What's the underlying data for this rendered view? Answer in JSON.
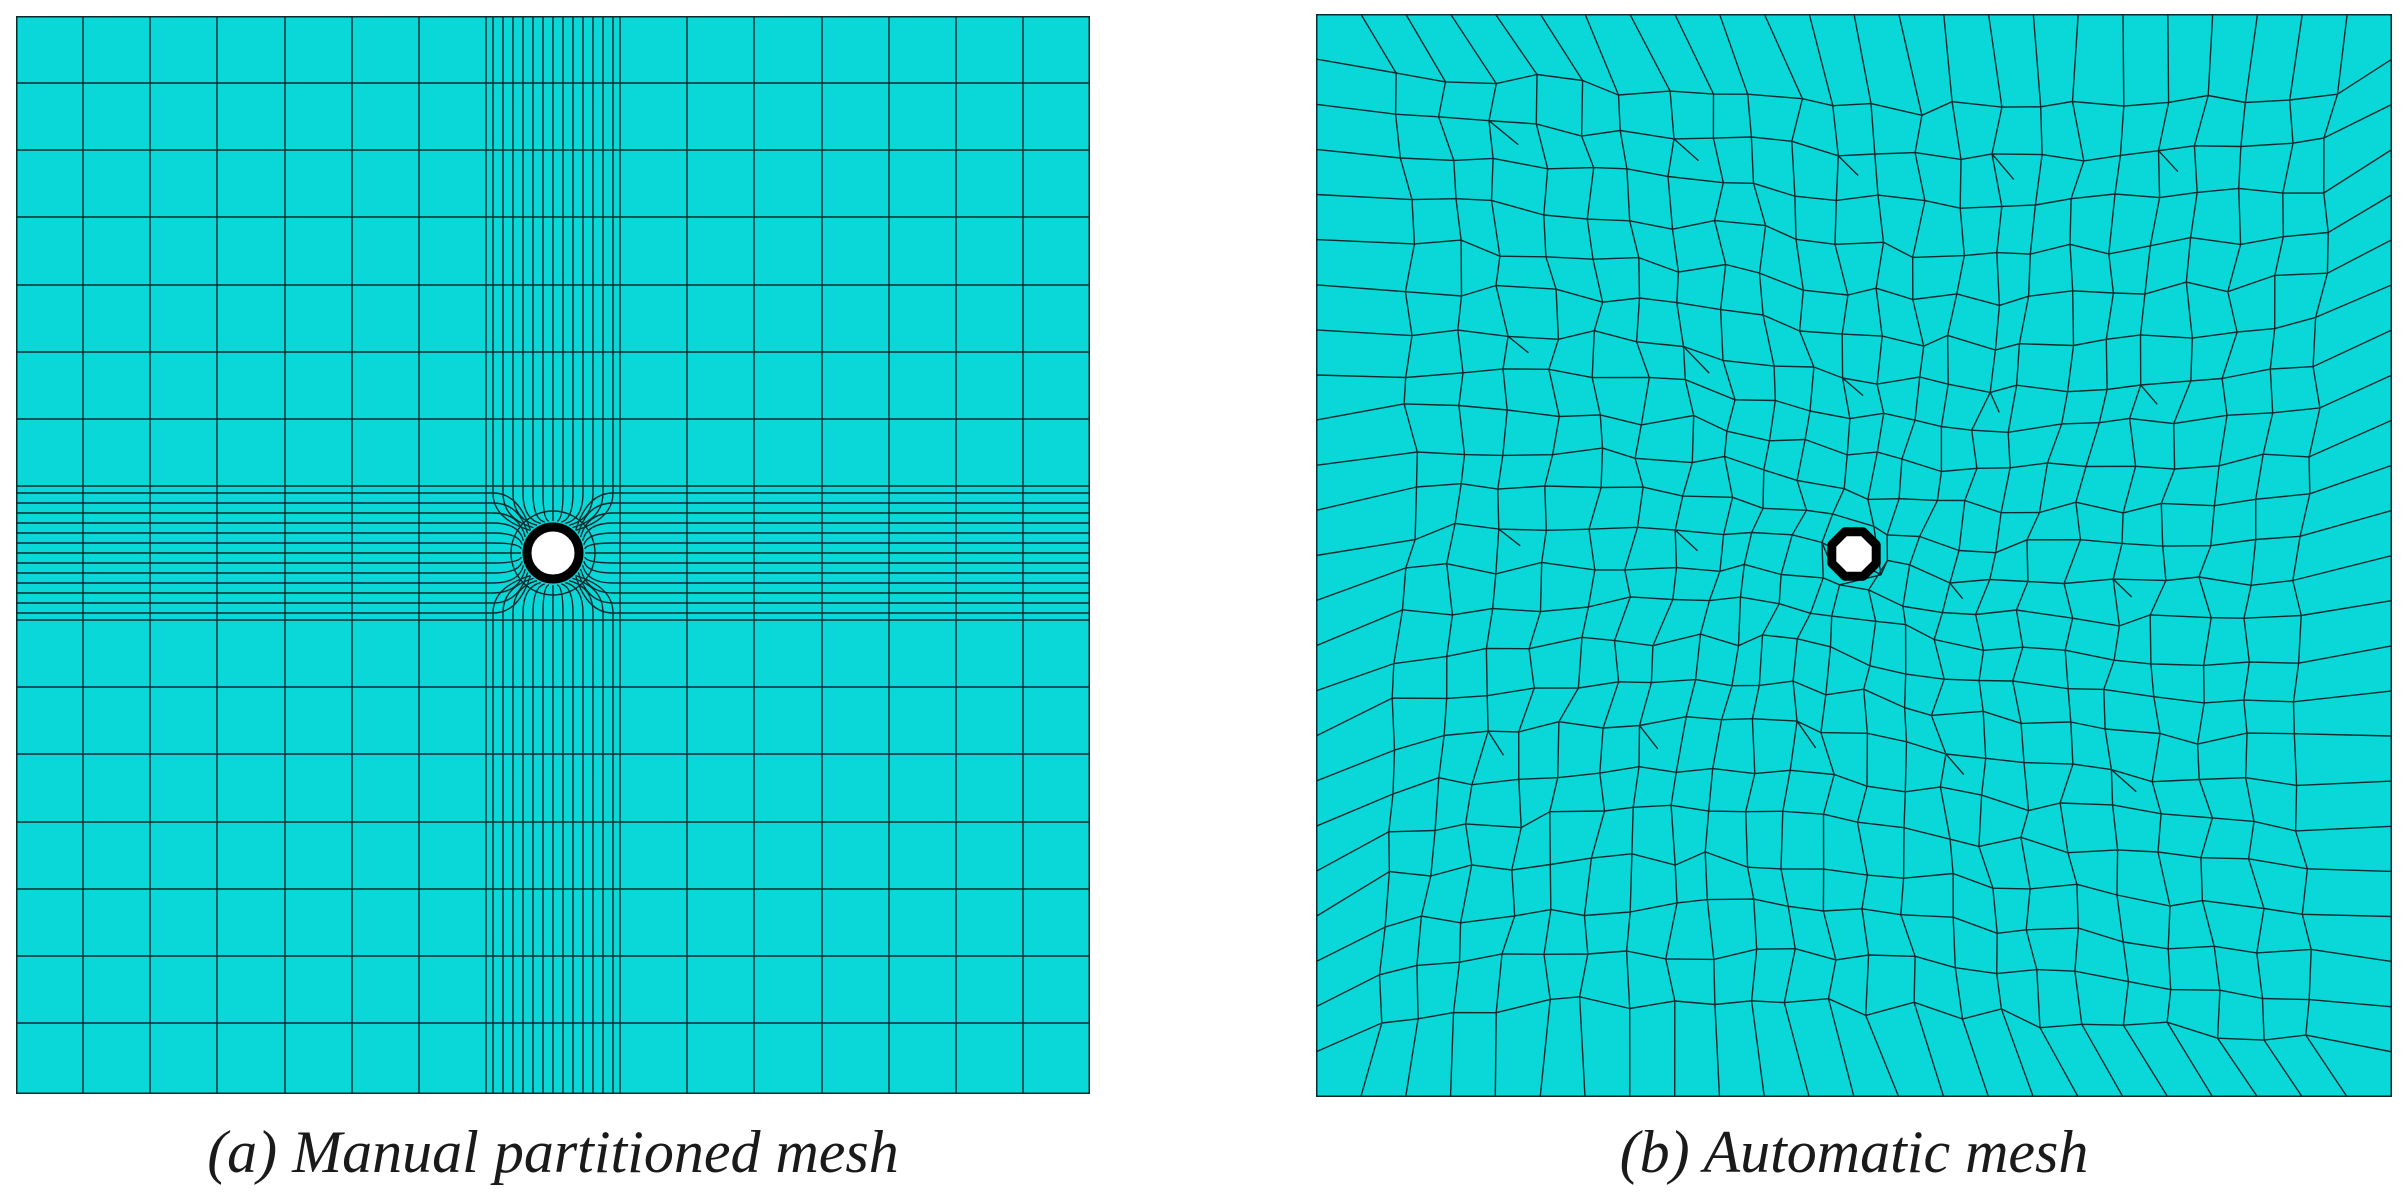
{
  "colors": {
    "mesh_fill": "#0ad8d8",
    "mesh_line": "#0b2a2e",
    "hole_outline": "#000000",
    "hole_fill": "#ffffff",
    "background": "#ffffff"
  },
  "panels": [
    {
      "id": "a",
      "caption": "(a) Manual partitioned mesh",
      "mesh_type": "structured-partitioned",
      "coarse_divisions": 16,
      "refined_band_lines": 12,
      "hole": "circular",
      "hole_position": "center"
    },
    {
      "id": "b",
      "caption": "(b) Automatic mesh",
      "mesh_type": "unstructured-free",
      "hole": "octagonal",
      "hole_position": "center"
    }
  ]
}
